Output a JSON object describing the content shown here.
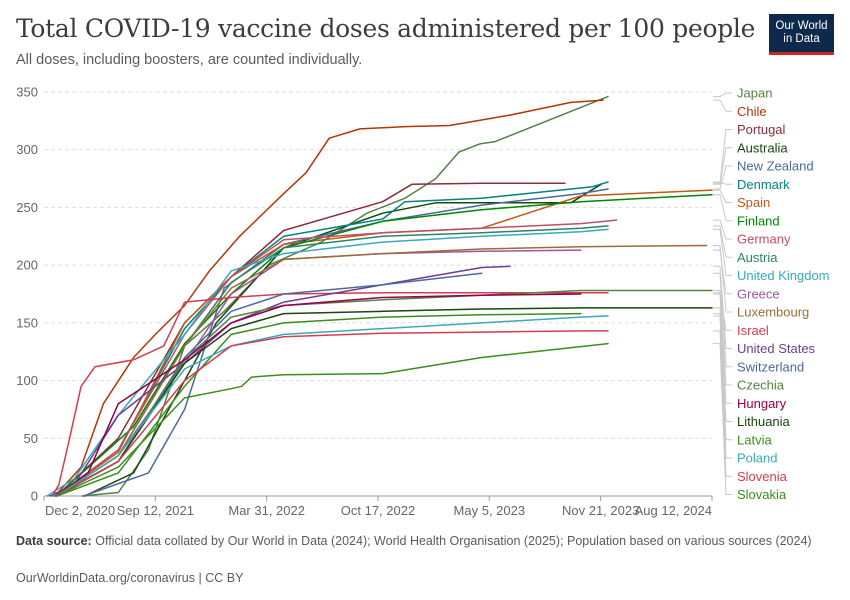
{
  "header": {
    "title": "Total COVID-19 vaccine doses administered per 100 people",
    "subtitle": "All doses, including boosters, are counted individually.",
    "logo_line1": "Our World",
    "logo_line2": "in Data"
  },
  "footer": {
    "source_label": "Data source:",
    "source_text": "Official data collated by Our World in Data (2024); World Health Organisation (2025); Population based on various sources (2024)",
    "url_text": "OurWorldinData.org/coronavirus | CC BY"
  },
  "chart_data": {
    "type": "line",
    "title": "Total COVID-19 vaccine doses administered per 100 people",
    "xlabel": "",
    "ylabel": "",
    "ylim": [
      0,
      350
    ],
    "yticks": [
      0,
      50,
      100,
      150,
      200,
      250,
      300,
      350
    ],
    "x_tick_labels": [
      "Dec 2, 2020",
      "Sep 12, 2021",
      "Mar 31, 2022",
      "Oct 17, 2022",
      "May 5, 2023",
      "Nov 21, 2023",
      "Aug 12, 2024"
    ],
    "xlim": [
      "2020-12-02",
      "2024-08-12"
    ],
    "grid": "horizontal dashed",
    "legend": "right, labels at line ends",
    "series": [
      {
        "name": "Japan",
        "color": "#578145",
        "points": [
          [
            "2021-02-17",
            0
          ],
          [
            "2021-05-01",
            3
          ],
          [
            "2021-07-01",
            40
          ],
          [
            "2021-09-12",
            130
          ],
          [
            "2021-12-01",
            160
          ],
          [
            "2022-03-01",
            200
          ],
          [
            "2022-06-15",
            220
          ],
          [
            "2022-09-15",
            245
          ],
          [
            "2022-12-01",
            258
          ],
          [
            "2023-02-01",
            275
          ],
          [
            "2023-03-20",
            298
          ],
          [
            "2023-05-01",
            305
          ],
          [
            "2023-06-01",
            307
          ],
          [
            "2024-01-15",
            346
          ]
        ]
      },
      {
        "name": "Chile",
        "color": "#b13507",
        "points": [
          [
            "2020-12-24",
            0
          ],
          [
            "2021-02-15",
            25
          ],
          [
            "2021-04-01",
            80
          ],
          [
            "2021-06-01",
            120
          ],
          [
            "2021-07-15",
            140
          ],
          [
            "2021-09-12",
            165
          ],
          [
            "2021-11-01",
            195
          ],
          [
            "2022-01-01",
            225
          ],
          [
            "2022-03-31",
            262
          ],
          [
            "2022-05-15",
            280
          ],
          [
            "2022-07-01",
            310
          ],
          [
            "2022-09-01",
            318
          ],
          [
            "2022-12-01",
            320
          ],
          [
            "2023-03-01",
            321
          ],
          [
            "2023-07-01",
            330
          ],
          [
            "2023-11-01",
            341
          ],
          [
            "2024-01-05",
            343
          ]
        ]
      },
      {
        "name": "Portugal",
        "color": "#883039",
        "points": [
          [
            "2020-12-27",
            0
          ],
          [
            "2021-05-01",
            50
          ],
          [
            "2021-09-12",
            150
          ],
          [
            "2021-12-15",
            190
          ],
          [
            "2022-03-31",
            230
          ],
          [
            "2022-10-17",
            255
          ],
          [
            "2022-12-15",
            270
          ],
          [
            "2023-05-05",
            271
          ],
          [
            "2023-10-20",
            271
          ]
        ]
      },
      {
        "name": "Australia",
        "color": "#18470f",
        "points": [
          [
            "2021-02-22",
            0
          ],
          [
            "2021-06-01",
            20
          ],
          [
            "2021-09-12",
            100
          ],
          [
            "2021-11-15",
            150
          ],
          [
            "2022-03-31",
            215
          ],
          [
            "2022-10-17",
            245
          ],
          [
            "2023-02-01",
            254
          ],
          [
            "2023-11-01",
            254
          ],
          [
            "2024-01-01",
            270
          ]
        ]
      },
      {
        "name": "New Zealand",
        "color": "#4c6a9c",
        "points": [
          [
            "2021-02-20",
            0
          ],
          [
            "2021-07-01",
            20
          ],
          [
            "2021-09-12",
            75
          ],
          [
            "2021-12-01",
            180
          ],
          [
            "2022-03-31",
            218
          ],
          [
            "2022-10-17",
            238
          ],
          [
            "2023-05-05",
            252
          ],
          [
            "2023-11-21",
            262
          ],
          [
            "2024-01-15",
            266
          ]
        ]
      },
      {
        "name": "Denmark",
        "color": "#00847e",
        "points": [
          [
            "2020-12-27",
            0
          ],
          [
            "2021-05-01",
            40
          ],
          [
            "2021-09-12",
            145
          ],
          [
            "2021-12-15",
            190
          ],
          [
            "2022-03-31",
            225
          ],
          [
            "2022-10-17",
            240
          ],
          [
            "2022-12-01",
            255
          ],
          [
            "2023-05-05",
            258
          ],
          [
            "2023-12-15",
            268
          ],
          [
            "2024-01-15",
            272
          ]
        ]
      },
      {
        "name": "Spain",
        "color": "#c05917",
        "points": [
          [
            "2020-12-27",
            0
          ],
          [
            "2021-05-01",
            38
          ],
          [
            "2021-09-12",
            150
          ],
          [
            "2021-12-15",
            190
          ],
          [
            "2022-03-31",
            218
          ],
          [
            "2022-10-17",
            228
          ],
          [
            "2023-05-05",
            232
          ],
          [
            "2023-11-21",
            260
          ],
          [
            "2024-08-12",
            265
          ]
        ]
      },
      {
        "name": "Finland",
        "color": "#008600",
        "points": [
          [
            "2020-12-27",
            0
          ],
          [
            "2021-06-01",
            60
          ],
          [
            "2021-09-12",
            132
          ],
          [
            "2021-12-15",
            175
          ],
          [
            "2022-03-31",
            215
          ],
          [
            "2022-10-17",
            238
          ],
          [
            "2023-05-05",
            248
          ],
          [
            "2023-11-21",
            255
          ],
          [
            "2024-08-12",
            261
          ]
        ]
      },
      {
        "name": "Germany",
        "color": "#c15065",
        "points": [
          [
            "2020-12-27",
            0
          ],
          [
            "2021-05-01",
            40
          ],
          [
            "2021-09-12",
            140
          ],
          [
            "2021-12-15",
            190
          ],
          [
            "2022-03-31",
            222
          ],
          [
            "2022-10-17",
            228
          ],
          [
            "2023-05-05",
            232
          ],
          [
            "2023-11-21",
            236
          ],
          [
            "2024-02-01",
            239
          ]
        ]
      },
      {
        "name": "Austria",
        "color": "#2c8465",
        "points": [
          [
            "2020-12-27",
            0
          ],
          [
            "2021-05-01",
            35
          ],
          [
            "2021-09-12",
            130
          ],
          [
            "2021-12-15",
            185
          ],
          [
            "2022-03-31",
            215
          ],
          [
            "2022-10-17",
            225
          ],
          [
            "2023-05-05",
            228
          ],
          [
            "2023-11-21",
            232
          ],
          [
            "2024-01-15",
            234
          ]
        ]
      },
      {
        "name": "United Kingdom",
        "color": "#38aaba",
        "points": [
          [
            "2020-12-08",
            0
          ],
          [
            "2021-02-01",
            15
          ],
          [
            "2021-05-01",
            70
          ],
          [
            "2021-09-12",
            140
          ],
          [
            "2021-12-15",
            195
          ],
          [
            "2022-03-31",
            210
          ],
          [
            "2022-10-17",
            220
          ],
          [
            "2023-05-05",
            225
          ],
          [
            "2023-11-21",
            229
          ],
          [
            "2024-01-15",
            231
          ]
        ]
      },
      {
        "name": "Greece",
        "color": "#a2559c",
        "points": [
          [
            "2020-12-27",
            0
          ],
          [
            "2021-05-01",
            35
          ],
          [
            "2021-09-12",
            115
          ],
          [
            "2021-12-15",
            175
          ],
          [
            "2022-03-31",
            205
          ],
          [
            "2022-10-17",
            210
          ],
          [
            "2023-05-05",
            212
          ],
          [
            "2023-11-21",
            213
          ]
        ]
      },
      {
        "name": "Luxembourg",
        "color": "#996d39",
        "points": [
          [
            "2020-12-28",
            0
          ],
          [
            "2021-05-01",
            35
          ],
          [
            "2021-09-12",
            130
          ],
          [
            "2021-12-15",
            180
          ],
          [
            "2022-03-31",
            205
          ],
          [
            "2022-10-17",
            210
          ],
          [
            "2023-05-05",
            214
          ],
          [
            "2023-11-21",
            216
          ],
          [
            "2024-08-01",
            217
          ]
        ]
      },
      {
        "name": "Israel",
        "color": "#d73c50",
        "points": [
          [
            "2020-12-19",
            0
          ],
          [
            "2021-01-01",
            10
          ],
          [
            "2021-01-20",
            45
          ],
          [
            "2021-02-15",
            95
          ],
          [
            "2021-03-15",
            112
          ],
          [
            "2021-06-01",
            118
          ],
          [
            "2021-08-01",
            130
          ],
          [
            "2021-09-12",
            168
          ],
          [
            "2021-12-15",
            172
          ],
          [
            "2022-03-31",
            175
          ],
          [
            "2022-10-17",
            176
          ],
          [
            "2023-05-05",
            176
          ],
          [
            "2024-01-15",
            176
          ]
        ]
      },
      {
        "name": "United States",
        "color": "#6d3e91",
        "points": [
          [
            "2020-12-14",
            0
          ],
          [
            "2021-02-01",
            10
          ],
          [
            "2021-05-01",
            70
          ],
          [
            "2021-09-12",
            115
          ],
          [
            "2021-12-15",
            150
          ],
          [
            "2022-03-31",
            168
          ],
          [
            "2022-10-17",
            183
          ],
          [
            "2023-05-05",
            198
          ],
          [
            "2023-07-01",
            199
          ]
        ]
      },
      {
        "name": "Switzerland",
        "color": "#4c6a9c",
        "points": [
          [
            "2020-12-23",
            0
          ],
          [
            "2021-05-01",
            30
          ],
          [
            "2021-09-12",
            120
          ],
          [
            "2021-12-15",
            160
          ],
          [
            "2022-03-31",
            175
          ],
          [
            "2022-10-17",
            183
          ],
          [
            "2023-05-05",
            193
          ]
        ]
      },
      {
        "name": "Czechia",
        "color": "#578145",
        "points": [
          [
            "2020-12-27",
            0
          ],
          [
            "2021-05-01",
            30
          ],
          [
            "2021-09-12",
            118
          ],
          [
            "2021-12-15",
            155
          ],
          [
            "2022-03-31",
            165
          ],
          [
            "2022-10-17",
            170
          ],
          [
            "2023-05-05",
            174
          ],
          [
            "2023-11-21",
            178
          ],
          [
            "2024-08-12",
            178
          ]
        ]
      },
      {
        "name": "Hungary",
        "color": "#970046",
        "points": [
          [
            "2020-12-26",
            0
          ],
          [
            "2021-03-01",
            20
          ],
          [
            "2021-05-01",
            80
          ],
          [
            "2021-09-12",
            118
          ],
          [
            "2021-12-15",
            150
          ],
          [
            "2022-03-31",
            165
          ],
          [
            "2022-10-17",
            172
          ],
          [
            "2023-05-05",
            174
          ],
          [
            "2023-11-21",
            175
          ]
        ]
      },
      {
        "name": "Lithuania",
        "color": "#18470f",
        "points": [
          [
            "2020-12-27",
            0
          ],
          [
            "2021-05-01",
            30
          ],
          [
            "2021-09-12",
            115
          ],
          [
            "2021-12-15",
            145
          ],
          [
            "2022-03-31",
            158
          ],
          [
            "2022-10-17",
            160
          ],
          [
            "2023-05-05",
            162
          ],
          [
            "2023-11-21",
            163
          ],
          [
            "2024-08-12",
            163
          ]
        ]
      },
      {
        "name": "Latvia",
        "color": "#3b8e1d",
        "points": [
          [
            "2020-12-28",
            0
          ],
          [
            "2021-05-01",
            20
          ],
          [
            "2021-09-12",
            95
          ],
          [
            "2021-12-15",
            140
          ],
          [
            "2022-03-31",
            150
          ],
          [
            "2022-10-17",
            155
          ],
          [
            "2023-05-05",
            157
          ],
          [
            "2023-11-21",
            158
          ]
        ]
      },
      {
        "name": "Poland",
        "color": "#38aaba",
        "points": [
          [
            "2020-12-27",
            0
          ],
          [
            "2021-05-01",
            35
          ],
          [
            "2021-09-12",
            110
          ],
          [
            "2021-12-15",
            130
          ],
          [
            "2022-03-31",
            140
          ],
          [
            "2022-10-17",
            145
          ],
          [
            "2023-05-05",
            150
          ],
          [
            "2023-11-21",
            155
          ],
          [
            "2024-01-15",
            156
          ]
        ]
      },
      {
        "name": "Slovenia",
        "color": "#d73c50",
        "points": [
          [
            "2020-12-27",
            0
          ],
          [
            "2021-05-01",
            30
          ],
          [
            "2021-09-12",
            100
          ],
          [
            "2021-12-15",
            130
          ],
          [
            "2022-03-31",
            138
          ],
          [
            "2022-10-17",
            141
          ],
          [
            "2023-05-05",
            142
          ],
          [
            "2023-11-21",
            143
          ],
          [
            "2024-01-15",
            143
          ]
        ]
      },
      {
        "name": "Slovakia",
        "color": "#3b8e1d",
        "points": [
          [
            "2020-12-27",
            0
          ],
          [
            "2021-05-01",
            25
          ],
          [
            "2021-09-12",
            85
          ],
          [
            "2021-12-15",
            93
          ],
          [
            "2022-01-05",
            95
          ],
          [
            "2022-01-25",
            103
          ],
          [
            "2022-03-31",
            105
          ],
          [
            "2022-10-17",
            106
          ],
          [
            "2023-05-05",
            120
          ],
          [
            "2024-01-15",
            132
          ]
        ]
      }
    ]
  }
}
